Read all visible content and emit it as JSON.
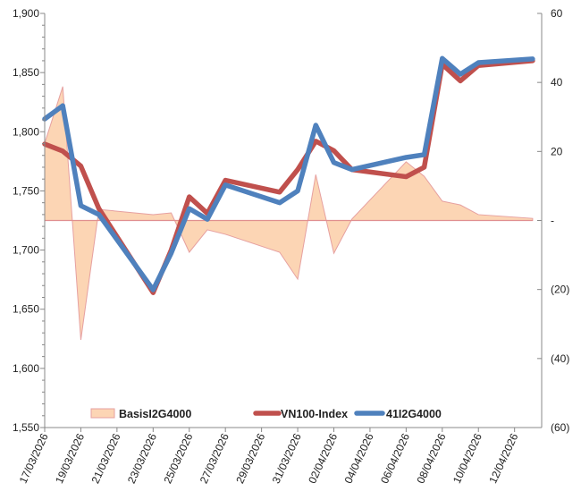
{
  "chart_data": {
    "type": "line",
    "title": "",
    "x_start": "2026-03-17",
    "x_end_days": 27.5,
    "x_tick_labels": [
      "17/03/2026",
      "19/03/2026",
      "21/03/2026",
      "23/03/2026",
      "25/03/2026",
      "27/03/2026",
      "29/03/2026",
      "31/03/2026",
      "02/04/2026",
      "04/04/2026",
      "06/04/2026",
      "08/04/2026",
      "10/04/2026",
      "12/04/2026"
    ],
    "x": [
      "17/03",
      "18/03",
      "19/03",
      "20/03",
      "23/03",
      "24/03",
      "25/03",
      "26/03",
      "27/03",
      "30/03",
      "31/03",
      "01/04",
      "02/04",
      "03/04",
      "06/04",
      "07/04",
      "08/04",
      "09/04",
      "10/04",
      "13/04"
    ],
    "x_days": [
      0,
      1,
      2,
      3,
      6,
      7,
      8,
      9,
      10,
      13,
      14,
      15,
      16,
      17,
      20,
      21,
      22,
      23,
      24,
      27
    ],
    "y_left": {
      "min": 1550,
      "max": 1900,
      "step": 50,
      "tick_labels": [
        "1,550",
        "1,600",
        "1,650",
        "1,700",
        "1,750",
        "1,800",
        "1,850",
        "1,900"
      ]
    },
    "y_right": {
      "min": -60,
      "max": 60,
      "step": 20,
      "tick_labels": [
        "(60)",
        "(40)",
        "(20)",
        "-",
        "20",
        "40",
        "60"
      ]
    },
    "series": [
      {
        "name": "BasisI2G4000",
        "type": "area",
        "axis": "right",
        "color": "#fcd5b4",
        "stroke": "#e6a0a0",
        "values": [
          22.4,
          38.8,
          -34.6,
          3.2,
          1.7,
          2.2,
          -9.2,
          -2.7,
          -4.0,
          -9.2,
          -17.0,
          13.3,
          -9.5,
          0.4,
          17.0,
          12.8,
          5.6,
          4.5,
          1.7,
          0.6
        ]
      },
      {
        "name": "VN100-Index",
        "type": "line",
        "axis": "left",
        "color": "#c0504d",
        "values": [
          1789.6,
          1783.6,
          1771,
          1735,
          1664,
          1700,
          1745,
          1731,
          1759,
          1749,
          1768,
          1792,
          1784,
          1768,
          1762,
          1770,
          1857,
          1843,
          1856,
          1860
        ]
      },
      {
        "name": "41I2G4000",
        "type": "line",
        "axis": "left",
        "color": "#4f81bd",
        "values": [
          1810.8,
          1822,
          1737.5,
          1730,
          1666.4,
          1697.4,
          1735,
          1726,
          1755,
          1740,
          1750,
          1805.5,
          1774,
          1768,
          1778.3,
          1780.6,
          1862,
          1848.6,
          1858.4,
          1861.5
        ]
      }
    ],
    "legend_position": "bottom-inside",
    "grid": false
  }
}
